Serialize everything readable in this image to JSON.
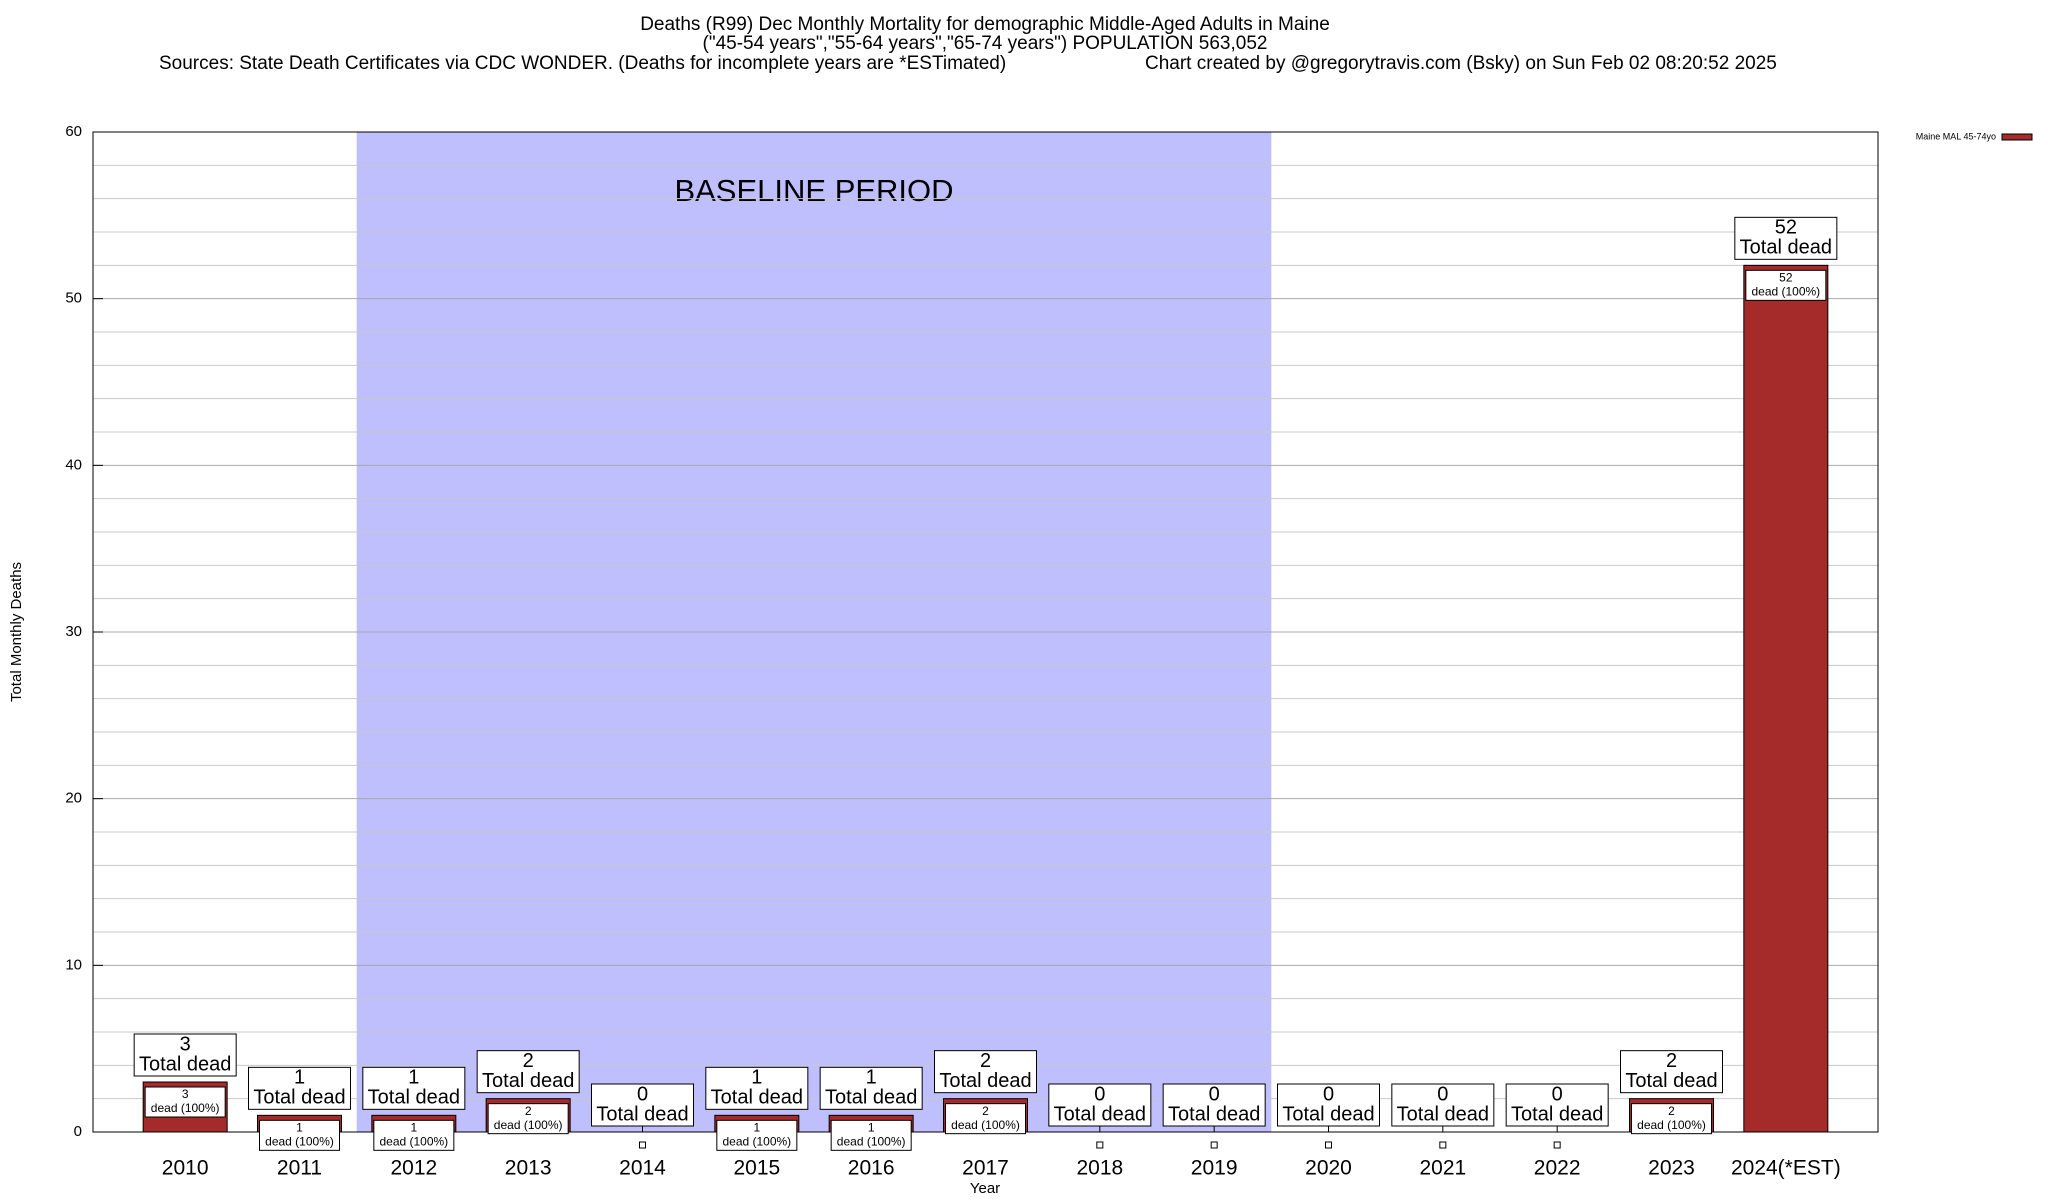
{
  "chart_data": {
    "type": "bar",
    "title": "Deaths (R99) Dec Monthly Mortality for demographic Middle-Aged Adults in Maine",
    "subtitle": "(\"45-54 years\",\"55-64 years\",\"65-74 years\") POPULATION 563,052",
    "sources": "Sources: State Death Certificates via CDC WONDER. (Deaths for incomplete years are *ESTimated)",
    "credit": "Chart created by @gregorytravis.com (Bsky) on Sun Feb 02 08:20:52 2025",
    "x_label": "Year",
    "y_label": "Total Monthly Deaths",
    "categories": [
      "2010",
      "2011",
      "2012",
      "2013",
      "2014",
      "2015",
      "2016",
      "2017",
      "2018",
      "2019",
      "2020",
      "2021",
      "2022",
      "2023",
      "2024(*EST)"
    ],
    "series": [
      {
        "name": "Maine MAL 45-74yo",
        "color": "#a52a2a",
        "values": [
          3,
          1,
          1,
          2,
          0,
          1,
          1,
          2,
          0,
          0,
          0,
          0,
          0,
          2,
          52
        ]
      }
    ],
    "total_label": "Total dead",
    "share_label": "dead (100%)",
    "baseline": {
      "label": "BASELINE PERIOD",
      "from": "2012",
      "to": "2019",
      "color": "#bfbffd"
    },
    "ylim": [
      0,
      60
    ],
    "yticks": [
      0,
      10,
      20,
      30,
      40,
      50,
      60
    ],
    "yminorticks": [
      2,
      4,
      6,
      8,
      12,
      14,
      16,
      18,
      22,
      24,
      26,
      28,
      32,
      34,
      36,
      38,
      42,
      44,
      46,
      48,
      52,
      54,
      56,
      58
    ],
    "grid": true,
    "legend": "top-right"
  }
}
